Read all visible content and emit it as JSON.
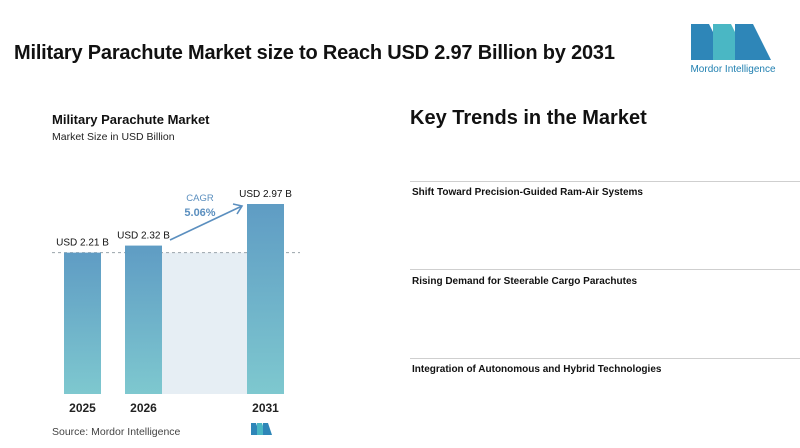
{
  "headline": "Military Parachute Market size to Reach USD 2.97 Billion by 2031",
  "brand": {
    "name": "Mordor Intelligence",
    "color": "#1f7fb0",
    "accent": "#4ab7c4"
  },
  "chart_data": {
    "type": "bar",
    "title": "Military Parachute Market",
    "subtitle": "Market Size in USD Billion",
    "categories": [
      "2025",
      "2026",
      "2031"
    ],
    "values": [
      2.21,
      2.32,
      2.97
    ],
    "value_labels": [
      "USD 2.21 B",
      "USD 2.32 B",
      "USD 2.97 B"
    ],
    "cagr_label": "CAGR",
    "cagr_value": "5.06%",
    "grid": false,
    "colors": {
      "bar_top": "#5f9cc4",
      "bar_bottom": "#7ec8cf",
      "shade": "#e6eef4",
      "cagr": "#5b8fbf"
    }
  },
  "source": "Source: Mordor Intelligence",
  "trends": {
    "title": "Key Trends in the Market",
    "items": [
      "Shift Toward Precision-Guided Ram-Air Systems",
      "Rising Demand for Steerable Cargo Parachutes",
      "Integration of Autonomous and Hybrid Technologies"
    ]
  }
}
